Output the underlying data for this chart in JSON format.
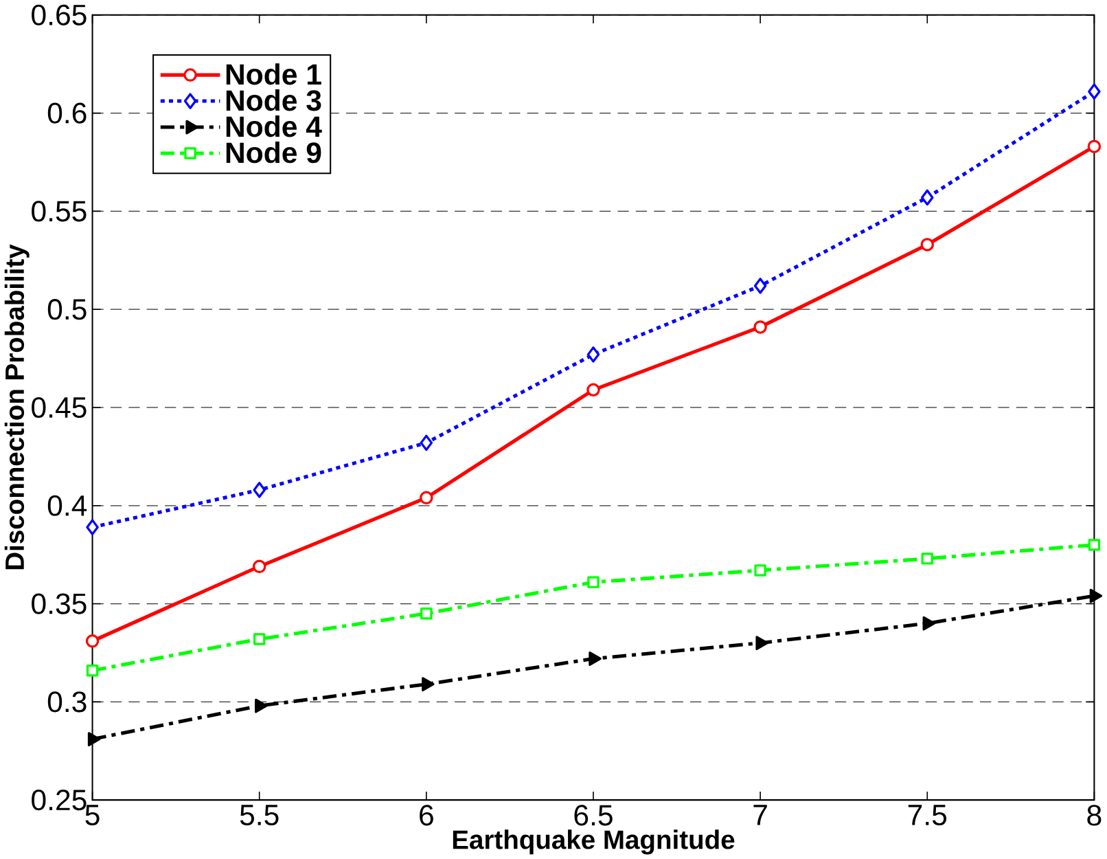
{
  "chart_data": {
    "type": "line",
    "xlabel": "Earthquake Magnitude",
    "ylabel": "Disconnection Probability",
    "x": [
      5,
      5.5,
      6,
      6.5,
      7,
      7.5,
      8
    ],
    "series": [
      {
        "name": "Node 1",
        "color": "#ff0000",
        "marker": "circle",
        "line_style": "solid",
        "values": [
          0.331,
          0.369,
          0.404,
          0.459,
          0.491,
          0.533,
          0.583
        ]
      },
      {
        "name": "Node 3",
        "color": "#0000ff",
        "marker": "diamond",
        "line_style": "dotted",
        "values": [
          0.389,
          0.408,
          0.432,
          0.477,
          0.512,
          0.557,
          0.611
        ]
      },
      {
        "name": "Node 4",
        "color": "#000000",
        "marker": "triangle",
        "line_style": "dashdot",
        "values": [
          0.281,
          0.298,
          0.309,
          0.322,
          0.33,
          0.34,
          0.354
        ]
      },
      {
        "name": "Node 9",
        "color": "#00ff00",
        "marker": "square",
        "line_style": "dashdot",
        "values": [
          0.316,
          0.332,
          0.345,
          0.361,
          0.367,
          0.373,
          0.38
        ]
      }
    ],
    "xlim": [
      5,
      8
    ],
    "xticks": [
      5,
      5.5,
      6,
      6.5,
      7,
      7.5,
      8
    ],
    "ylim": [
      0.25,
      0.65
    ],
    "yticks": [
      0.25,
      0.3,
      0.35,
      0.4,
      0.45,
      0.5,
      0.55,
      0.6,
      0.65
    ],
    "grid": "y",
    "legend": "top left"
  }
}
